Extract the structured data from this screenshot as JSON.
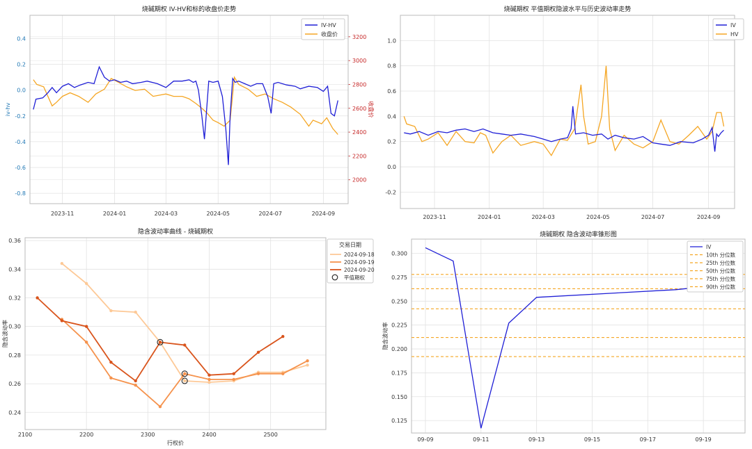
{
  "chart_data": [
    {
      "type": "line",
      "title": "烧碱期权 IV-HV和标的收盘价走势",
      "ylabel": "iv-hv",
      "y2label": "收盘价",
      "ylim": [
        -0.88,
        0.58
      ],
      "y2lim": [
        1800,
        3380
      ],
      "xlim": [
        "2023-09-24",
        "2024-09-30"
      ],
      "x_ticks": [
        "2023-11",
        "2024-01",
        "2024-03",
        "2024-05",
        "2024-07",
        "2024-09"
      ],
      "x_tick_dates": [
        "2023-11-01",
        "2024-01-01",
        "2024-03-01",
        "2024-05-01",
        "2024-07-01",
        "2024-09-01"
      ],
      "y_ticks": [
        -0.8,
        -0.6,
        -0.4,
        -0.2,
        0.0,
        0.2,
        0.4
      ],
      "y_tick_labels": [
        "-0.8",
        "-0.6",
        "-0.4",
        "-0.2",
        "0.0",
        "0.2",
        "0.4"
      ],
      "y2_ticks": [
        2000,
        2200,
        2400,
        2600,
        2800,
        3000,
        3200
      ],
      "y2_tick_labels": [
        "2000",
        "2200",
        "2400",
        "2600",
        "2800",
        "3000",
        "3200"
      ],
      "grid": true,
      "legend": "top-right",
      "series": [
        {
          "name": "IV-HV",
          "axis": "left",
          "color": "#1f1fd6",
          "x": [
            "2023-09-28",
            "2023-10-01",
            "2023-10-09",
            "2023-10-15",
            "2023-10-20",
            "2023-10-25",
            "2023-11-01",
            "2023-11-08",
            "2023-11-15",
            "2023-11-22",
            "2023-12-01",
            "2023-12-08",
            "2023-12-14",
            "2023-12-20",
            "2023-12-26",
            "2024-01-01",
            "2024-01-08",
            "2024-01-15",
            "2024-01-22",
            "2024-02-01",
            "2024-02-08",
            "2024-02-20",
            "2024-03-01",
            "2024-03-10",
            "2024-03-20",
            "2024-03-28",
            "2024-04-02",
            "2024-04-05",
            "2024-04-08",
            "2024-04-12",
            "2024-04-15",
            "2024-04-20",
            "2024-04-25",
            "2024-05-01",
            "2024-05-06",
            "2024-05-10",
            "2024-05-13",
            "2024-05-15",
            "2024-05-18",
            "2024-05-21",
            "2024-05-25",
            "2024-06-01",
            "2024-06-08",
            "2024-06-15",
            "2024-06-22",
            "2024-06-28",
            "2024-07-02",
            "2024-07-05",
            "2024-07-10",
            "2024-07-20",
            "2024-07-30",
            "2024-08-05",
            "2024-08-15",
            "2024-08-25",
            "2024-09-01",
            "2024-09-06",
            "2024-09-10",
            "2024-09-14",
            "2024-09-18"
          ],
          "y": [
            -0.15,
            -0.07,
            -0.06,
            -0.02,
            0.02,
            -0.02,
            0.03,
            0.05,
            0.02,
            0.04,
            0.06,
            0.05,
            0.18,
            0.1,
            0.07,
            0.08,
            0.06,
            0.07,
            0.05,
            0.06,
            0.07,
            0.05,
            0.02,
            0.07,
            0.07,
            0.08,
            0.06,
            0.07,
            0.0,
            -0.2,
            -0.38,
            0.07,
            0.06,
            0.07,
            -0.05,
            -0.3,
            -0.58,
            -0.2,
            0.09,
            0.06,
            0.07,
            0.05,
            0.03,
            0.05,
            0.05,
            -0.05,
            -0.18,
            0.05,
            0.06,
            0.04,
            0.03,
            0.01,
            0.03,
            0.02,
            -0.01,
            0.03,
            -0.18,
            -0.2,
            -0.08
          ]
        },
        {
          "name": "收盘价",
          "axis": "right",
          "color": "#f5a623",
          "x": [
            "2023-09-28",
            "2023-10-02",
            "2023-10-10",
            "2023-10-15",
            "2023-10-20",
            "2023-10-25",
            "2023-11-01",
            "2023-11-10",
            "2023-11-20",
            "2023-12-01",
            "2023-12-10",
            "2023-12-20",
            "2023-12-28",
            "2024-01-05",
            "2024-01-15",
            "2024-01-25",
            "2024-02-05",
            "2024-02-15",
            "2024-03-01",
            "2024-03-10",
            "2024-03-20",
            "2024-03-28",
            "2024-04-05",
            "2024-04-12",
            "2024-04-18",
            "2024-04-25",
            "2024-05-01",
            "2024-05-08",
            "2024-05-15",
            "2024-05-20",
            "2024-05-25",
            "2024-06-05",
            "2024-06-15",
            "2024-06-25",
            "2024-07-05",
            "2024-07-15",
            "2024-07-25",
            "2024-08-05",
            "2024-08-15",
            "2024-08-20",
            "2024-08-30",
            "2024-09-05",
            "2024-09-12",
            "2024-09-18"
          ],
          "y": [
            2840,
            2800,
            2780,
            2700,
            2620,
            2650,
            2700,
            2730,
            2700,
            2650,
            2720,
            2760,
            2850,
            2820,
            2780,
            2750,
            2760,
            2700,
            2720,
            2700,
            2700,
            2680,
            2640,
            2600,
            2560,
            2500,
            2480,
            2450,
            2500,
            2860,
            2800,
            2760,
            2700,
            2720,
            2680,
            2650,
            2610,
            2550,
            2450,
            2500,
            2470,
            2520,
            2430,
            2380
          ]
        }
      ]
    },
    {
      "type": "line",
      "title": "烧碱期权 平值期权隐波水平与历史波动率走势",
      "ylim": [
        -0.33,
        1.2
      ],
      "xlim": [
        "2023-09-24",
        "2024-09-30"
      ],
      "x_ticks": [
        "2023-11",
        "2024-01",
        "2024-03",
        "2024-05",
        "2024-07",
        "2024-09"
      ],
      "x_tick_dates": [
        "2023-11-01",
        "2024-01-01",
        "2024-03-01",
        "2024-05-01",
        "2024-07-01",
        "2024-09-01"
      ],
      "y_ticks": [
        -0.2,
        0.0,
        0.2,
        0.4,
        0.6,
        0.8,
        1.0
      ],
      "y_tick_labels": [
        "-0.2",
        "0.0",
        "0.2",
        "0.4",
        "0.6",
        "0.8",
        "1.0"
      ],
      "grid": true,
      "legend": "top-right",
      "series": [
        {
          "name": "IV",
          "color": "#1f1fd6",
          "x": [
            "2023-09-28",
            "2023-10-05",
            "2023-10-15",
            "2023-10-25",
            "2023-11-05",
            "2023-11-15",
            "2023-11-25",
            "2023-12-05",
            "2023-12-15",
            "2023-12-25",
            "2024-01-05",
            "2024-01-15",
            "2024-01-25",
            "2024-02-05",
            "2024-02-20",
            "2024-03-01",
            "2024-03-10",
            "2024-03-20",
            "2024-03-28",
            "2024-04-01",
            "2024-04-03",
            "2024-04-06",
            "2024-04-15",
            "2024-04-25",
            "2024-05-05",
            "2024-05-12",
            "2024-05-20",
            "2024-05-30",
            "2024-06-10",
            "2024-06-20",
            "2024-07-01",
            "2024-07-10",
            "2024-07-20",
            "2024-08-01",
            "2024-08-15",
            "2024-08-25",
            "2024-09-01",
            "2024-09-05",
            "2024-09-08",
            "2024-09-10",
            "2024-09-12",
            "2024-09-15",
            "2024-09-18"
          ],
          "y": [
            0.27,
            0.26,
            0.28,
            0.25,
            0.28,
            0.27,
            0.29,
            0.3,
            0.28,
            0.3,
            0.27,
            0.26,
            0.25,
            0.26,
            0.24,
            0.22,
            0.2,
            0.22,
            0.23,
            0.3,
            0.48,
            0.26,
            0.27,
            0.25,
            0.26,
            0.22,
            0.25,
            0.23,
            0.22,
            0.24,
            0.19,
            0.18,
            0.17,
            0.2,
            0.19,
            0.22,
            0.25,
            0.31,
            0.12,
            0.26,
            0.24,
            0.27,
            0.29
          ]
        },
        {
          "name": "HV",
          "color": "#f5a623",
          "x": [
            "2023-09-28",
            "2023-10-01",
            "2023-10-10",
            "2023-10-18",
            "2023-10-25",
            "2023-11-05",
            "2023-11-15",
            "2023-11-25",
            "2023-12-05",
            "2023-12-15",
            "2023-12-22",
            "2023-12-28",
            "2024-01-05",
            "2024-01-15",
            "2024-01-25",
            "2024-02-05",
            "2024-02-20",
            "2024-03-01",
            "2024-03-10",
            "2024-03-20",
            "2024-03-28",
            "2024-04-05",
            "2024-04-12",
            "2024-04-15",
            "2024-04-20",
            "2024-04-28",
            "2024-05-05",
            "2024-05-10",
            "2024-05-14",
            "2024-05-20",
            "2024-05-30",
            "2024-06-10",
            "2024-06-20",
            "2024-07-01",
            "2024-07-10",
            "2024-07-20",
            "2024-07-30",
            "2024-08-10",
            "2024-08-20",
            "2024-08-30",
            "2024-09-05",
            "2024-09-10",
            "2024-09-15",
            "2024-09-18"
          ],
          "y": [
            0.4,
            0.34,
            0.32,
            0.2,
            0.22,
            0.27,
            0.17,
            0.28,
            0.2,
            0.19,
            0.27,
            0.25,
            0.11,
            0.2,
            0.25,
            0.17,
            0.2,
            0.18,
            0.09,
            0.22,
            0.21,
            0.3,
            0.65,
            0.4,
            0.18,
            0.2,
            0.4,
            0.8,
            0.3,
            0.13,
            0.25,
            0.18,
            0.15,
            0.2,
            0.37,
            0.2,
            0.18,
            0.25,
            0.32,
            0.22,
            0.28,
            0.43,
            0.43,
            0.32
          ]
        }
      ]
    },
    {
      "type": "line",
      "title": "隐含波动率曲线 - 烧碱期权",
      "xlabel": "行权价",
      "ylabel": "隐含波动率",
      "xlim": [
        2100,
        2590
      ],
      "ylim": [
        0.228,
        0.362
      ],
      "x_ticks": [
        2100,
        2200,
        2300,
        2400,
        2500
      ],
      "x_tick_labels": [
        "2100",
        "2200",
        "2300",
        "2400",
        "2500"
      ],
      "y_ticks": [
        0.24,
        0.26,
        0.28,
        0.3,
        0.32,
        0.34,
        0.36
      ],
      "y_tick_labels": [
        "0.24",
        "0.26",
        "0.28",
        "0.30",
        "0.32",
        "0.34",
        "0.36"
      ],
      "grid": true,
      "legend_title": "交易日期",
      "legend": "right",
      "atm_label": "平值期权",
      "series": [
        {
          "name": "2024-09-18",
          "color": "#fdc997",
          "x": [
            2160,
            2200,
            2240,
            2280,
            2320,
            2360,
            2400,
            2440,
            2480,
            2520,
            2560
          ],
          "y": [
            0.344,
            0.33,
            0.311,
            0.31,
            0.289,
            0.262,
            0.261,
            0.262,
            0.268,
            0.268,
            0.273
          ]
        },
        {
          "name": "2024-09-19",
          "color": "#f5924c",
          "x": [
            2160,
            2200,
            2240,
            2280,
            2320,
            2360,
            2400,
            2440,
            2480,
            2520,
            2560
          ],
          "y": [
            0.305,
            0.289,
            0.264,
            0.259,
            0.244,
            0.267,
            0.263,
            0.263,
            0.267,
            0.267,
            0.276
          ]
        },
        {
          "name": "2024-09-20",
          "color": "#d9541c",
          "x": [
            2120,
            2160,
            2200,
            2240,
            2280,
            2320,
            2360,
            2400,
            2440,
            2480,
            2520
          ],
          "y": [
            0.32,
            0.304,
            0.3,
            0.275,
            0.262,
            0.289,
            0.287,
            0.266,
            0.267,
            0.282,
            0.293
          ]
        }
      ],
      "atm_points": [
        {
          "x": 2320,
          "y": 0.289
        },
        {
          "x": 2360,
          "y": 0.267
        },
        {
          "x": 2360,
          "y": 0.262
        }
      ]
    },
    {
      "type": "line",
      "title": "烧碱期权 隐含波动率锥形图",
      "ylabel": "隐含波动率",
      "xlim": [
        "2024-09-08 12:00",
        "2024-09-20 12:00"
      ],
      "ylim": [
        0.112,
        0.315
      ],
      "x_ticks": [
        "09-09",
        "09-11",
        "09-13",
        "09-15",
        "09-17",
        "09-19"
      ],
      "x_tick_dates": [
        "2024-09-09",
        "2024-09-11",
        "2024-09-13",
        "2024-09-15",
        "2024-09-17",
        "2024-09-19"
      ],
      "y_ticks": [
        0.125,
        0.15,
        0.175,
        0.2,
        0.225,
        0.25,
        0.275,
        0.3
      ],
      "y_tick_labels": [
        "0.125",
        "0.150",
        "0.175",
        "0.200",
        "0.225",
        "0.250",
        "0.275",
        "0.300"
      ],
      "grid": true,
      "legend": "top-right",
      "series": [
        {
          "name": "IV",
          "color": "#1f1fd6",
          "x": [
            "2024-09-09",
            "2024-09-10",
            "2024-09-11",
            "2024-09-12",
            "2024-09-13",
            "2024-09-18",
            "2024-09-19"
          ],
          "y": [
            0.306,
            0.292,
            0.117,
            0.227,
            0.254,
            0.262,
            0.265
          ]
        }
      ],
      "hlines": [
        {
          "name": "10th 分位数",
          "y": 0.192,
          "color": "#f5a623"
        },
        {
          "name": "25th 分位数",
          "y": 0.212,
          "color": "#f5a623"
        },
        {
          "name": "50th 分位数",
          "y": 0.242,
          "color": "#f5a623"
        },
        {
          "name": "75th 分位数",
          "y": 0.263,
          "color": "#f5a623"
        },
        {
          "name": "90th 分位数",
          "y": 0.278,
          "color": "#f5a623"
        }
      ]
    }
  ]
}
